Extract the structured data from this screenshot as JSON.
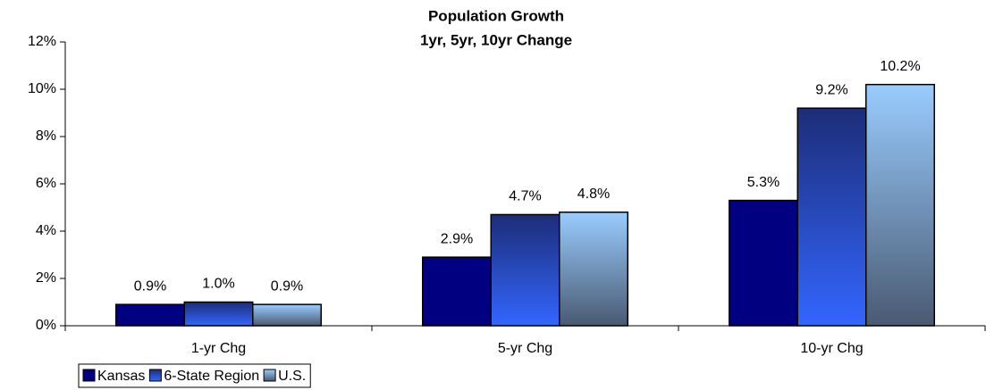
{
  "chart_data": {
    "type": "bar",
    "title": "Population Growth",
    "subtitle": "1yr, 5yr, 10yr Change",
    "categories": [
      "1-yr Chg",
      "5-yr Chg",
      "10-yr Chg"
    ],
    "series": [
      {
        "name": "Kansas",
        "color": "#000080",
        "values": [
          0.9,
          2.9,
          5.3
        ],
        "value_labels": [
          "0.9%",
          "2.9%",
          "5.3%"
        ]
      },
      {
        "name": "6-State Region",
        "color": "#3366ff",
        "values": [
          1.0,
          4.7,
          9.2
        ],
        "value_labels": [
          "1.0%",
          "4.7%",
          "9.2%"
        ]
      },
      {
        "name": "U.S.",
        "color": "#99ccff",
        "values": [
          0.9,
          4.8,
          10.2
        ],
        "value_labels": [
          "0.9%",
          "4.8%",
          "10.2%"
        ]
      }
    ],
    "ylim": [
      0,
      12
    ],
    "yticks": [
      {
        "value": 0,
        "label": "0%"
      },
      {
        "value": 2,
        "label": "2%"
      },
      {
        "value": 4,
        "label": "4%"
      },
      {
        "value": 6,
        "label": "6%"
      },
      {
        "value": 8,
        "label": "8%"
      },
      {
        "value": 10,
        "label": "10%"
      },
      {
        "value": 12,
        "label": "12%"
      }
    ],
    "grid": false,
    "legend": "bottom-left"
  }
}
